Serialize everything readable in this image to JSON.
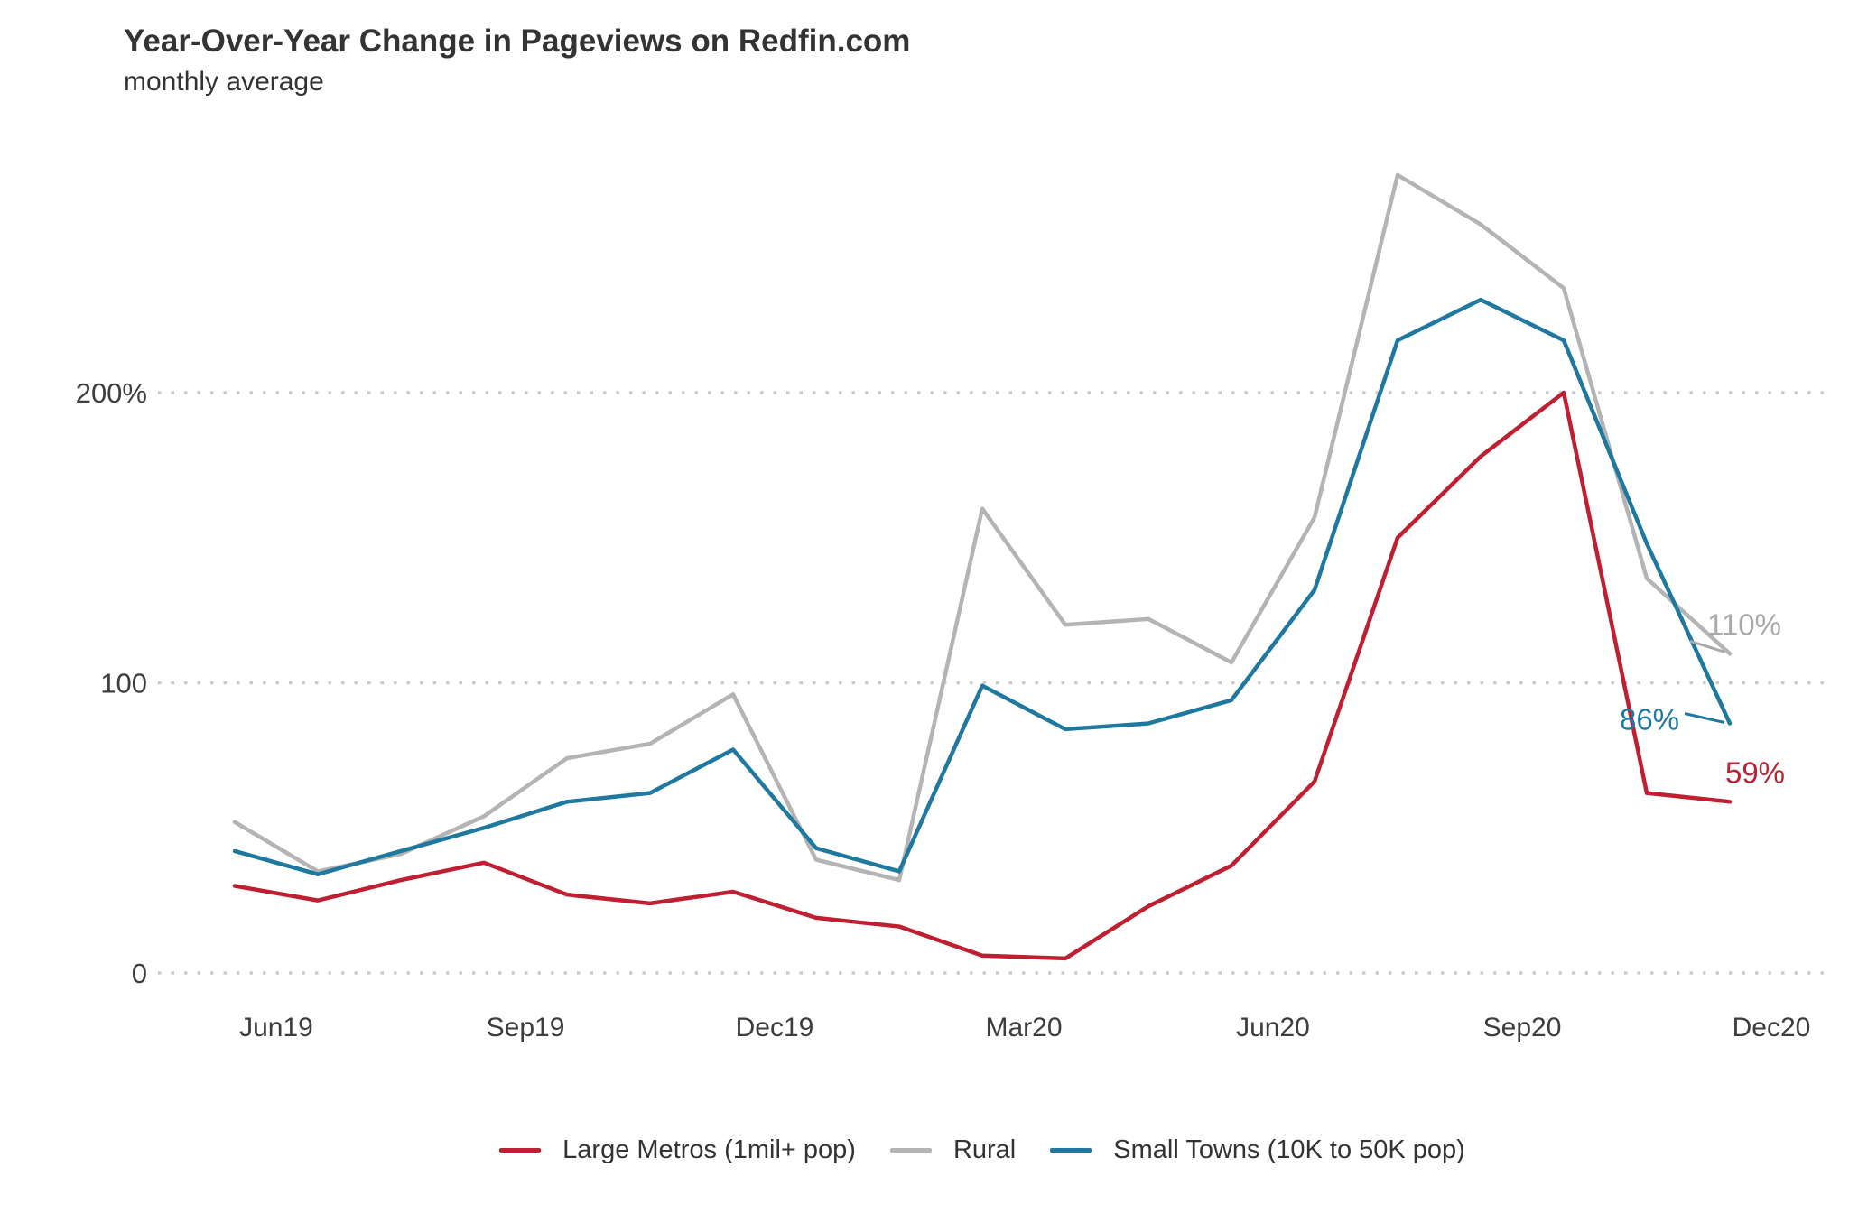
{
  "title": "Year-Over-Year Change in Pageviews on Redfin.com",
  "subtitle": "monthly average",
  "colors": {
    "large_metros": "#bf1f30",
    "rural": "#b4b4b4",
    "small_towns": "#1f78a0",
    "grid": "#cbcbcb",
    "title_text": "#333333",
    "axis_text": "#3d3d3d"
  },
  "chart_data": {
    "type": "line",
    "title": "Year-Over-Year Change in Pageviews on Redfin.com",
    "subtitle": "monthly average",
    "x": [
      "Jun19",
      "Jul19",
      "Aug19",
      "Sep19",
      "Oct19",
      "Nov19",
      "Dec19",
      "Jan20",
      "Feb20",
      "Mar20",
      "Apr20",
      "May20",
      "Jun20",
      "Jul20",
      "Aug20",
      "Sep20",
      "Oct20",
      "Nov20",
      "Dec20"
    ],
    "x_tick_labels": [
      "Jun19",
      "Sep19",
      "Dec19",
      "Mar20",
      "Jun20",
      "Sep20",
      "Dec20"
    ],
    "y_ticks": [
      {
        "value": 0,
        "label": "0"
      },
      {
        "value": 100,
        "label": "100"
      },
      {
        "value": 200,
        "label": "200%"
      }
    ],
    "ylim": [
      0,
      290
    ],
    "grid": "horizontal-dotted",
    "legend_position": "bottom",
    "series": [
      {
        "key": "large_metros",
        "name": "Large Metros (1mil+ pop)",
        "color": "#bf1f30",
        "values": [
          30,
          25,
          32,
          38,
          27,
          24,
          28,
          19,
          16,
          6,
          5,
          23,
          37,
          66,
          150,
          178,
          200,
          62,
          59
        ]
      },
      {
        "key": "rural",
        "name": "Rural",
        "color": "#b4b4b4",
        "values": [
          52,
          35,
          41,
          54,
          74,
          79,
          96,
          39,
          32,
          160,
          120,
          122,
          107,
          157,
          275,
          258,
          236,
          136,
          110
        ]
      },
      {
        "key": "small_towns",
        "name": "Small Towns (10K to 50K pop)",
        "color": "#1f78a0",
        "values": [
          42,
          34,
          42,
          50,
          59,
          62,
          77,
          43,
          35,
          99,
          84,
          86,
          94,
          132,
          218,
          232,
          218,
          148,
          86
        ]
      }
    ],
    "end_labels": [
      {
        "series": "rural",
        "text": "110%",
        "color": "#a9a9a9",
        "leader": true
      },
      {
        "series": "small_towns",
        "text": "86%",
        "color": "#1f78a0",
        "leader": true
      },
      {
        "series": "large_metros",
        "text": "59%",
        "color": "#bf1f30",
        "leader": false
      }
    ]
  },
  "legend": {
    "items": [
      {
        "key": "large_metros",
        "label": "Large Metros (1mil+ pop)",
        "color": "#bf1f30"
      },
      {
        "key": "rural",
        "label": "Rural",
        "color": "#b4b4b4"
      },
      {
        "key": "small_towns",
        "label": "Small Towns (10K to 50K pop)",
        "color": "#1f78a0"
      }
    ]
  }
}
